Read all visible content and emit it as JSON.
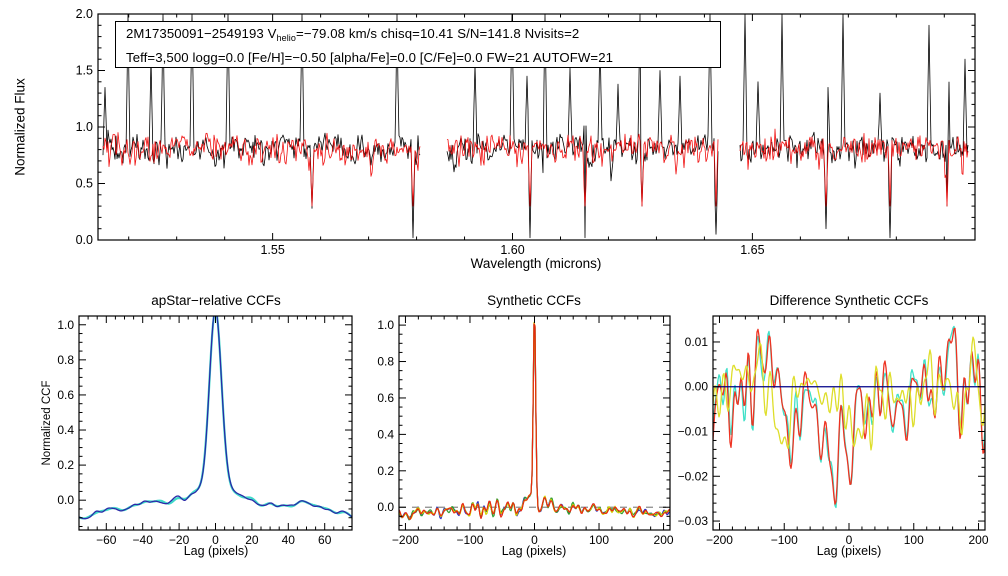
{
  "annotation": {
    "line1_prefix": "2M17350091−2549193  V",
    "line1_sub": "helio",
    "line1_rest": "=−79.08 km/s  chisq=10.41  S/N=141.8  Nvisits=2",
    "line2": "Teff=3,500 logg=0.0 [Fe/H]=−0.50 [alpha/Fe]=0.0 [C/Fe]=0.0 FW=21 AUTOFW=21"
  },
  "top_panel": {
    "ylabel": "Normalized Flux",
    "xlabel": "Wavelength (microns)"
  },
  "bottom_panels": [
    {
      "title": "apStar−relative CCFs",
      "ylabel": "Normalized CCF",
      "xlabel": "Lag (pixels)"
    },
    {
      "title": "Synthetic CCFs",
      "xlabel": "Lag (pixels)"
    },
    {
      "title": "Difference Synthetic CCFs",
      "xlabel": "Lag (pixels)"
    }
  ],
  "chart_data": [
    {
      "id": "spectrum",
      "type": "line",
      "title": "APOGEE combined spectrum with best-fit synthetic overlay",
      "xlabel": "Wavelength (microns)",
      "ylabel": "Normalized Flux",
      "xlim": [
        1.5136,
        1.6964
      ],
      "ylim": [
        0,
        2
      ],
      "xticks": {
        "major": [
          1.55,
          1.6,
          1.65
        ],
        "labels": [
          "1.55",
          "1.60",
          "1.65"
        ],
        "minor_step": 0.01
      },
      "yticks": {
        "major": [
          0,
          0.5,
          1.0,
          1.5,
          2.0
        ],
        "labels": [
          "0.0",
          "0.5",
          "1.0",
          "1.5",
          "2.0"
        ],
        "minor_step": 0.1
      },
      "segments": [
        [
          1.5146,
          1.5807
        ],
        [
          1.5863,
          1.6428
        ],
        [
          1.6474,
          1.6949
        ]
      ],
      "series": [
        {
          "name": "observed-spectrum",
          "color": "#000000",
          "width": 0.8
        },
        {
          "name": "synthetic-fit",
          "color": "#f01010",
          "width": 0.8
        }
      ],
      "shape": {
        "continuum": 0.95,
        "jag_sigma": 0.06,
        "mid_sigma": 0.08,
        "slow_sigma": 0.04,
        "pos_sigma": 0.02,
        "seed_black": 1,
        "seed_red": 5
      },
      "emission_spikes": [
        {
          "x": 1.5151,
          "h": 1.35
        },
        {
          "x": 1.5199,
          "h": 2.0
        },
        {
          "x": 1.5247,
          "h": 1.62
        },
        {
          "x": 1.5272,
          "h": 2.0
        },
        {
          "x": 1.5332,
          "h": 2.0
        },
        {
          "x": 1.5407,
          "h": 2.0
        },
        {
          "x": 1.5562,
          "h": 2.0
        },
        {
          "x": 1.5759,
          "h": 2.0
        },
        {
          "x": 1.5922,
          "h": 1.55
        },
        {
          "x": 1.5999,
          "h": 2.0
        },
        {
          "x": 1.603,
          "h": 1.45
        },
        {
          "x": 1.6068,
          "h": 2.0
        },
        {
          "x": 1.6119,
          "h": 1.52
        },
        {
          "x": 1.6151,
          "h": 2.0
        },
        {
          "x": 1.6182,
          "h": 1.8
        },
        {
          "x": 1.622,
          "h": 1.38
        },
        {
          "x": 1.6266,
          "h": 2.0
        },
        {
          "x": 1.6307,
          "h": 1.5
        },
        {
          "x": 1.6349,
          "h": 1.45
        },
        {
          "x": 1.6412,
          "h": 2.0
        },
        {
          "x": 1.6484,
          "h": 2.0
        },
        {
          "x": 1.6512,
          "h": 1.4
        },
        {
          "x": 1.6562,
          "h": 2.0
        },
        {
          "x": 1.6657,
          "h": 1.35
        },
        {
          "x": 1.6689,
          "h": 2.0
        },
        {
          "x": 1.6766,
          "h": 1.3
        },
        {
          "x": 1.6868,
          "h": 1.9
        },
        {
          "x": 1.6907,
          "h": 2.0
        },
        {
          "x": 1.6943,
          "h": 1.6
        }
      ],
      "down_spikes": [
        {
          "x": 1.5147,
          "d": 0.05
        },
        {
          "x": 1.5582,
          "d": 0.28
        },
        {
          "x": 1.5793,
          "d": 0.02
        },
        {
          "x": 1.6037,
          "d": 0.02
        },
        {
          "x": 1.6151,
          "d": 0.02
        },
        {
          "x": 1.6269,
          "d": 0.3
        },
        {
          "x": 1.6425,
          "d": 0.05
        },
        {
          "x": 1.6653,
          "d": 0.1
        },
        {
          "x": 1.6787,
          "d": 0.02
        },
        {
          "x": 1.6905,
          "d": 0.3
        }
      ]
    },
    {
      "id": "apstar",
      "type": "line",
      "title": "apStar−relative CCFs",
      "xlabel": "Lag (pixels)",
      "ylabel": "Normalized CCF",
      "xlim": [
        -75,
        75
      ],
      "ylim": [
        -0.17,
        1.05
      ],
      "xticks": {
        "major": [
          -60,
          -40,
          -20,
          0,
          20,
          40,
          60
        ],
        "labels": [
          "−60",
          "−40",
          "−20",
          "0",
          "20",
          "40",
          "60"
        ],
        "minor_step": 5
      },
      "yticks": {
        "major": [
          0,
          0.2,
          0.4,
          0.6,
          0.8,
          1.0
        ],
        "labels": [
          "0.0",
          "0.2",
          "0.4",
          "0.6",
          "0.8",
          "1.0"
        ],
        "minor_step": 0.05
      },
      "peak": {
        "x": 0,
        "height": 1.0,
        "sigma": 3.3
      },
      "shoulder": {
        "height": 0.085,
        "sigma": 8.5
      },
      "edge_value": -0.09,
      "series": [
        {
          "name": "visit-ccf-1",
          "color": "#3fd9c9",
          "width": 2.2
        },
        {
          "name": "visit-ccf-2",
          "color": "#2a2aa8",
          "width": 1.3
        }
      ],
      "shape": {
        "edge_pow": 2.2,
        "wiggle_sigma": 0.011,
        "noise_seed": 11,
        "overlay_delta": 0.005
      }
    },
    {
      "id": "synthetic",
      "type": "line",
      "title": "Synthetic CCFs",
      "xlabel": "Lag (pixels)",
      "xlim": [
        -210,
        210
      ],
      "ylim": [
        -0.125,
        1.05
      ],
      "xticks": {
        "major": [
          -200,
          -100,
          0,
          100,
          200
        ],
        "labels": [
          "−200",
          "−100",
          "0",
          "100",
          "200"
        ],
        "minor_step": 20
      },
      "yticks": {
        "major": [
          0,
          0.2,
          0.4,
          0.6,
          0.8,
          1.0
        ],
        "labels": [
          "0.0",
          "0.2",
          "0.4",
          "0.6",
          "0.8",
          "1.0"
        ],
        "minor_step": 0.05
      },
      "peak": {
        "x": 0,
        "height": 1.0,
        "sigma": 1.8
      },
      "shoulder": {
        "height": 0.055,
        "sigma": 11
      },
      "zero_line": {
        "style": "dashed",
        "color": "#8a8a8a"
      },
      "series": [
        {
          "name": "synth-ccf-visit1",
          "color": "#2a2ac0",
          "width": 1.2
        },
        {
          "name": "synth-ccf-visit2",
          "color": "#2f9f2f",
          "width": 1.2
        },
        {
          "name": "synth-ccf-comb",
          "color": "#d4d400",
          "width": 1.2
        },
        {
          "name": "synth-ccf-best",
          "color": "#e82810",
          "width": 1.2
        }
      ],
      "shape": {
        "edge_dip": -0.04,
        "edge_pow": 1.5,
        "wiggle_sigma": 0.013,
        "center_boost_sigma": 0.013,
        "center_boost_width": 45,
        "noise_seed": 21,
        "overlay_delta": 0.006
      }
    },
    {
      "id": "difference",
      "type": "line",
      "title": "Difference Synthetic CCFs",
      "xlabel": "Lag (pixels)",
      "xlim": [
        -210,
        210
      ],
      "ylim": [
        -0.032,
        0.0158
      ],
      "xticks": {
        "major": [
          -200,
          -100,
          0,
          100,
          200
        ],
        "labels": [
          "−200",
          "−100",
          "0",
          "100",
          "200"
        ],
        "minor_step": 20
      },
      "yticks": {
        "major": [
          0.01,
          0,
          -0.01,
          -0.02,
          -0.03
        ],
        "labels": [
          "0.01",
          "0.00",
          "−0.01",
          "−0.02",
          "−0.03"
        ],
        "minor_step": 0.002
      },
      "min_value": -0.03,
      "max_value": 0.013,
      "zero_line": {
        "style": "solid",
        "color": "#000088"
      },
      "series": [
        {
          "name": "diff-ccf-1",
          "color": "#3fe0c8",
          "width": 1.3,
          "group": "pair"
        },
        {
          "name": "diff-ccf-2",
          "color": "#ee3322",
          "width": 1.3,
          "group": "pair"
        },
        {
          "name": "diff-ccf-3",
          "color": "#dede2a",
          "width": 1.3,
          "group": "solo"
        }
      ],
      "shape": {
        "pair_noise_sigma": 0.0057,
        "pair_seed": 31,
        "pair_delta": 0.0012,
        "center_dip_amp": -0.016,
        "center_dip_sigma": 5,
        "broad_dip_amp": -0.011,
        "broad_dip_sigma": 42,
        "solo_noise_sigma": 0.0048,
        "solo_seed": 35,
        "solo_dip_amp": -0.005,
        "solo_dip_sigma": 70,
        "kmin": 3,
        "kmax": 40,
        "alpha": 0.45
      }
    }
  ]
}
